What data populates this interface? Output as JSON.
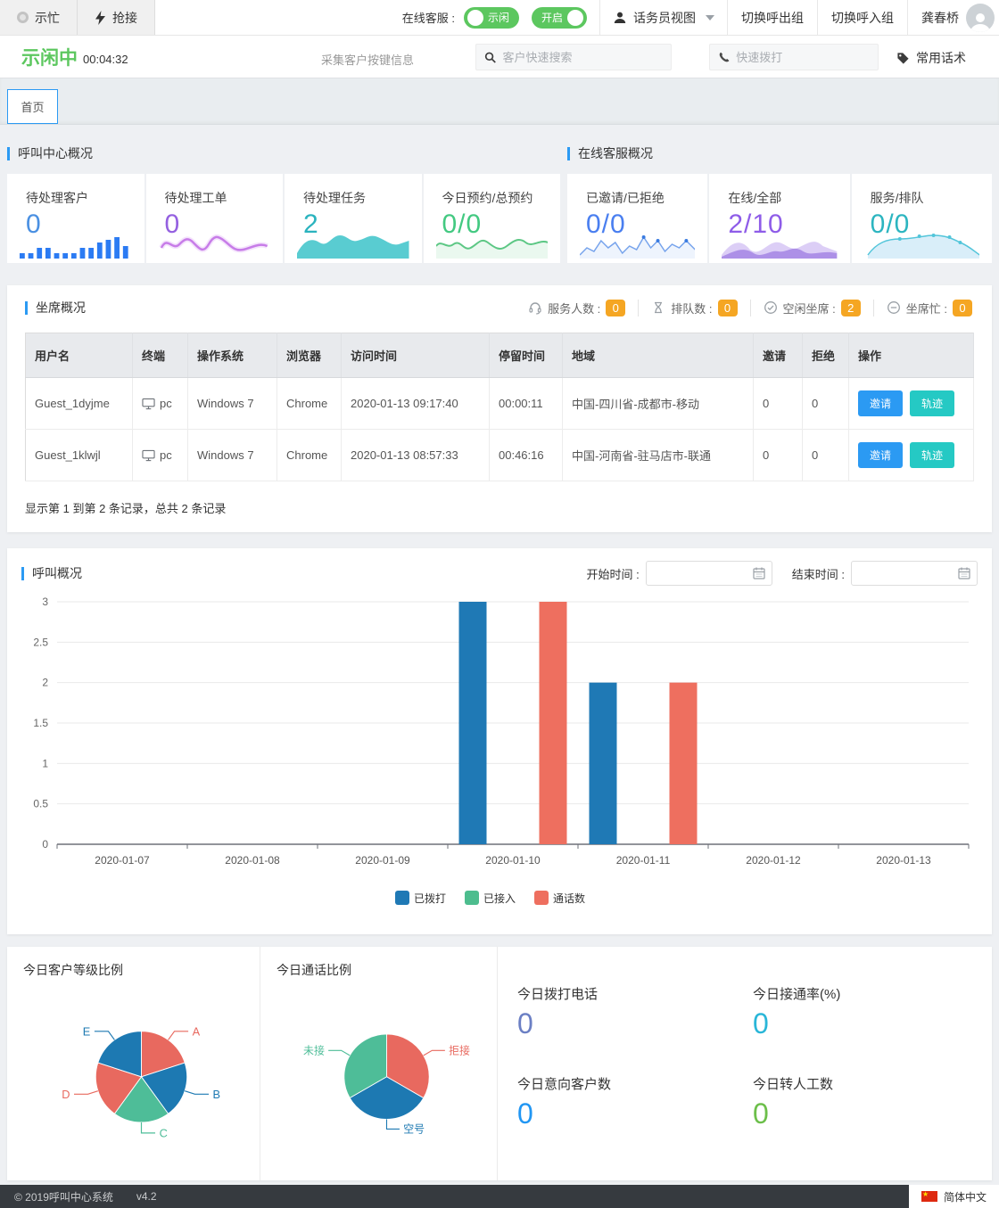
{
  "colors": {
    "green": "#5cc75f",
    "accent": "#2b9af3",
    "teal-btn": "#25c9c4",
    "orange": "#f5a623",
    "footer-bg": "#363a3f"
  },
  "topbar": {
    "busy_label": "示忙",
    "grab_label": "抢接",
    "online_service_label": "在线客服 :",
    "idle_toggle_label": "示闲",
    "on_toggle_label": "开启",
    "operator_view_label": "话务员视图",
    "switch_outbound_label": "切换呼出组",
    "switch_inbound_label": "切换呼入组",
    "username": "龚春桥"
  },
  "statusbar": {
    "status_text": "示闲中",
    "timer": "00:04:32",
    "collect_keys_label": "采集客户按键信息",
    "search_placeholder": "客户快速搜索",
    "dial_placeholder": "快速拨打",
    "phrases_label": "常用话术"
  },
  "tabs": {
    "home": "首页"
  },
  "call_center_overview": {
    "title": "呼叫中心概况",
    "cards": [
      {
        "label": "待处理客户",
        "value": "0",
        "color": "#4a90e2"
      },
      {
        "label": "待处理工单",
        "value": "0",
        "color": "#9460e0"
      },
      {
        "label": "待处理任务",
        "value": "2",
        "color": "#2ab3be"
      },
      {
        "label": "今日预约/总预约",
        "value": "0/0",
        "color": "#43c981"
      }
    ]
  },
  "online_service_overview": {
    "title": "在线客服概况",
    "cards": [
      {
        "label": "已邀请/已拒绝",
        "value": "0/0",
        "color": "#4a7ff0"
      },
      {
        "label": "在线/全部",
        "value": "2/10",
        "color": "#8e5ce8"
      },
      {
        "label": "服务/排队",
        "value": "0/0",
        "color": "#2cb5c0"
      }
    ]
  },
  "agent_overview": {
    "title": "坐席概况",
    "stats": [
      {
        "label": "服务人数 :",
        "value": "0",
        "icon": "headset-icon"
      },
      {
        "label": "排队数 :",
        "value": "0",
        "icon": "hourglass-icon"
      },
      {
        "label": "空闲坐席 :",
        "value": "2",
        "icon": "check-circle-icon"
      },
      {
        "label": "坐席忙 :",
        "value": "0",
        "icon": "minus-circle-icon"
      }
    ],
    "table": {
      "columns": [
        "用户名",
        "终端",
        "操作系统",
        "浏览器",
        "访问时间",
        "停留时间",
        "地域",
        "邀请",
        "拒绝",
        "操作"
      ],
      "rows": [
        {
          "username": "Guest_1dyjme",
          "terminal": "pc",
          "os": "Windows 7",
          "browser": "Chrome",
          "visit_time": "2020-01-13 09:17:40",
          "stay_time": "00:00:11",
          "region": "中国-四川省-成都市-移动",
          "invited": "0",
          "rejected": "0"
        },
        {
          "username": "Guest_1klwjl",
          "terminal": "pc",
          "os": "Windows 7",
          "browser": "Chrome",
          "visit_time": "2020-01-13 08:57:33",
          "stay_time": "00:46:16",
          "region": "中国-河南省-驻马店市-联通",
          "invited": "0",
          "rejected": "0"
        }
      ],
      "invite_button": "邀请",
      "track_button": "轨迹",
      "summary": "显示第 1 到第 2 条记录，总共 2 条记录"
    }
  },
  "call_overview": {
    "title": "呼叫概况",
    "start_label": "开始时间 :",
    "end_label": "结束时间 :",
    "start_value": "",
    "end_value": ""
  },
  "today_section": {
    "pie1_title": "今日客户等级比例",
    "pie2_title": "今日通话比例",
    "stats": [
      {
        "label": "今日拨打电话",
        "value": "0",
        "color": "#6b7fc4"
      },
      {
        "label": "今日接通率(%)",
        "value": "0",
        "color": "#29b6d8"
      },
      {
        "label": "今日意向客户数",
        "value": "0",
        "color": "#2196f3"
      },
      {
        "label": "今日转人工数",
        "value": "0",
        "color": "#6cbf4a"
      }
    ]
  },
  "chart_data": [
    {
      "id": "main-bar-chart",
      "type": "bar",
      "title": "呼叫概况",
      "categories": [
        "2020-01-07",
        "2020-01-08",
        "2020-01-09",
        "2020-01-10",
        "2020-01-11",
        "2020-01-12",
        "2020-01-13"
      ],
      "series": [
        {
          "name": "已拨打",
          "color": "#1f79b5",
          "values": [
            0,
            0,
            0,
            3,
            2,
            0,
            0
          ]
        },
        {
          "name": "已接入",
          "color": "#4dbd8e",
          "values": [
            0,
            0,
            0,
            0,
            0,
            0,
            0
          ]
        },
        {
          "name": "通话数",
          "color": "#ee6f5f",
          "values": [
            0,
            0,
            0,
            3,
            2,
            0,
            0
          ]
        }
      ],
      "xlabel": "",
      "ylabel": "",
      "ylim": [
        0,
        3
      ],
      "ytick_step": 0.5,
      "grid": true,
      "legend_position": "bottom"
    },
    {
      "id": "customer-level-pie",
      "type": "pie",
      "title": "今日客户等级比例",
      "labels": [
        "A",
        "B",
        "C",
        "D",
        "E"
      ],
      "values": [
        20,
        20,
        20,
        20,
        20
      ],
      "colors": [
        "#e8695f",
        "#1d79b2",
        "#4ebd98",
        "#e8695f",
        "#1d79b2"
      ]
    },
    {
      "id": "call-ratio-pie",
      "type": "pie",
      "title": "今日通话比例",
      "labels": [
        "拒接",
        "空号",
        "未接"
      ],
      "values": [
        33.34,
        33.33,
        33.33
      ],
      "colors": [
        "#e8695f",
        "#1d79b2",
        "#4ebd98"
      ]
    }
  ],
  "footer": {
    "copyright": "© 2019呼叫中心系统",
    "version": "v4.2",
    "language": "简体中文"
  }
}
